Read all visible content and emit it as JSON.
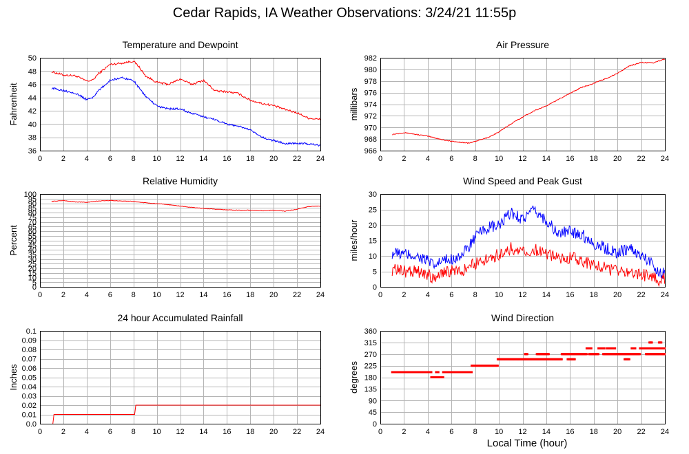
{
  "title": "Cedar Rapids, IA Weather Observations: 3/24/21 11:55p",
  "xlabel": "Local Time (hour)",
  "colors": {
    "red": "#ff0000",
    "blue": "#0000ff",
    "grid": "#b4b4b4",
    "frame": "#000000"
  },
  "chart_data": [
    {
      "type": "line",
      "title": "Temperature and Dewpoint",
      "ylabel": "Fahrenheit",
      "xlim": [
        0,
        24
      ],
      "ylim": [
        36,
        50
      ],
      "xticks": [
        0,
        2,
        4,
        6,
        8,
        10,
        12,
        14,
        16,
        18,
        20,
        22,
        24
      ],
      "yticks": [
        36,
        38,
        40,
        42,
        44,
        46,
        48,
        50
      ],
      "grid": true,
      "noise": 0.15,
      "series": [
        {
          "color": "#ff0000",
          "x": [
            1,
            2,
            3,
            4,
            4.5,
            5,
            6,
            7,
            8,
            8.5,
            9,
            10,
            11,
            12,
            13,
            14,
            15,
            16,
            17,
            18,
            19,
            20,
            21,
            22,
            23,
            24
          ],
          "values": [
            47.9,
            47.4,
            47.3,
            46.5,
            46.6,
            47.6,
            49.0,
            49.2,
            49.5,
            48.6,
            47.3,
            46.3,
            46.0,
            46.8,
            46.0,
            46.6,
            45.0,
            44.9,
            44.6,
            43.6,
            43.1,
            42.8,
            42.2,
            41.7,
            40.9,
            40.7
          ]
        },
        {
          "color": "#0000ff",
          "x": [
            1,
            2,
            3,
            4,
            4.5,
            5,
            6,
            7,
            8,
            8.5,
            9,
            10,
            11,
            12,
            13,
            14,
            15,
            16,
            17,
            18,
            19,
            20,
            21,
            22,
            23,
            24
          ],
          "values": [
            45.4,
            45.1,
            44.7,
            43.7,
            44.0,
            45.0,
            46.6,
            47.0,
            46.6,
            45.4,
            44.3,
            42.7,
            42.3,
            42.3,
            41.6,
            41.1,
            40.7,
            40.0,
            39.7,
            39.1,
            38.0,
            37.5,
            37.1,
            37.1,
            37.0,
            36.8
          ]
        }
      ]
    },
    {
      "type": "line",
      "title": "Air Pressure",
      "ylabel": "millibars",
      "xlim": [
        0,
        24
      ],
      "ylim": [
        966,
        982
      ],
      "xticks": [
        0,
        2,
        4,
        6,
        8,
        10,
        12,
        14,
        16,
        18,
        20,
        22,
        24
      ],
      "yticks": [
        966,
        968,
        970,
        972,
        974,
        976,
        978,
        980,
        982
      ],
      "grid": true,
      "noise": 0.08,
      "series": [
        {
          "color": "#ff0000",
          "x": [
            1,
            2,
            3,
            4,
            5,
            6,
            7,
            7.5,
            8,
            9,
            10,
            11,
            12,
            13,
            14,
            15,
            16,
            17,
            18,
            19,
            20,
            21,
            22,
            23,
            24
          ],
          "values": [
            968.8,
            969.1,
            968.8,
            968.5,
            968.0,
            967.6,
            967.4,
            967.3,
            967.6,
            968.2,
            969.2,
            970.6,
            971.8,
            972.9,
            973.7,
            974.8,
            975.9,
            976.9,
            977.6,
            978.4,
            979.3,
            980.6,
            981.2,
            981.1,
            981.8
          ]
        }
      ]
    },
    {
      "type": "line",
      "title": "Relative Humidity",
      "ylabel": "Percent",
      "xlim": [
        0,
        24
      ],
      "ylim": [
        0,
        100
      ],
      "xticks": [
        0,
        2,
        4,
        6,
        8,
        10,
        12,
        14,
        16,
        18,
        20,
        22,
        24
      ],
      "yticks": [
        0,
        5,
        10,
        15,
        20,
        25,
        30,
        35,
        40,
        45,
        50,
        55,
        60,
        65,
        70,
        75,
        80,
        85,
        90,
        95,
        100
      ],
      "grid": true,
      "noise": 0.3,
      "series": [
        {
          "color": "#ff0000",
          "x": [
            1,
            2,
            3,
            4,
            5,
            6,
            7,
            8,
            9,
            10,
            11,
            12,
            13,
            14,
            15,
            16,
            17,
            18,
            19,
            20,
            21,
            22,
            23,
            24
          ],
          "values": [
            92,
            93,
            91.5,
            91,
            92.5,
            93,
            92.5,
            92,
            90.5,
            89.5,
            88.5,
            87,
            85.5,
            84.5,
            83.5,
            83,
            82.5,
            82.5,
            82,
            82.5,
            81.5,
            83.5,
            86.5,
            87
          ]
        }
      ]
    },
    {
      "type": "line",
      "title": "Wind Speed and Peak Gust",
      "ylabel": "miles/hour",
      "xlim": [
        0,
        24
      ],
      "ylim": [
        0,
        30
      ],
      "xticks": [
        0,
        2,
        4,
        6,
        8,
        10,
        12,
        14,
        16,
        18,
        20,
        22,
        24
      ],
      "yticks": [
        0,
        5,
        10,
        15,
        20,
        25,
        30
      ],
      "grid": true,
      "noise": 2.0,
      "series": [
        {
          "color": "#0000ff",
          "x": [
            1,
            2,
            3,
            4,
            4.5,
            5,
            6,
            7,
            8,
            9,
            10,
            11,
            12,
            13,
            14,
            15,
            16,
            17,
            18,
            19,
            20,
            21,
            22,
            23,
            23.7,
            24
          ],
          "values": [
            11,
            10.5,
            10,
            8.5,
            6.5,
            8,
            9,
            10.5,
            16,
            19,
            19.5,
            24,
            22,
            24.5,
            21.5,
            17,
            18,
            17,
            14,
            12.5,
            11,
            12.5,
            10,
            7.5,
            4,
            5
          ]
        },
        {
          "color": "#ff0000",
          "x": [
            1,
            2,
            3,
            4,
            4.5,
            5,
            6,
            7,
            8,
            9,
            10,
            11,
            12,
            13,
            14,
            15,
            16,
            17,
            18,
            19,
            20,
            21,
            22,
            23,
            23.7,
            24
          ],
          "values": [
            5.5,
            5,
            5,
            4,
            3,
            4.5,
            5,
            5.5,
            7.5,
            9,
            10.5,
            12.5,
            11,
            12,
            10.5,
            9.5,
            9.5,
            8.5,
            7,
            6,
            5,
            5,
            4,
            3,
            2,
            3
          ]
        }
      ]
    },
    {
      "type": "line",
      "title": "24 hour Accumulated Rainfall",
      "ylabel": "Inches",
      "xlim": [
        0,
        24
      ],
      "ylim": [
        0,
        0.1
      ],
      "xticks": [
        0,
        2,
        4,
        6,
        8,
        10,
        12,
        14,
        16,
        18,
        20,
        22,
        24
      ],
      "yticks": [
        "0.0",
        "0.01",
        "0.02",
        "0.03",
        "0.04",
        "0.05",
        "0.06",
        "0.07",
        "0.08",
        "0.09",
        "0.1"
      ],
      "grid": true,
      "noise": 0,
      "series": [
        {
          "color": "#ff0000",
          "x": [
            1.1,
            1.2,
            8.1,
            8.2,
            24
          ],
          "values": [
            0,
            0.01,
            0.01,
            0.02,
            0.02
          ]
        }
      ]
    },
    {
      "type": "scatter",
      "title": "Wind Direction",
      "ylabel": "degrees",
      "xlim": [
        0,
        24
      ],
      "ylim": [
        0,
        360
      ],
      "xticks": [
        0,
        2,
        4,
        6,
        8,
        10,
        12,
        14,
        16,
        18,
        20,
        22,
        24
      ],
      "yticks": [
        0,
        45,
        90,
        135,
        180,
        225,
        270,
        315,
        360
      ],
      "grid": true,
      "noise": 0,
      "segments": [
        {
          "x0": 1,
          "x1": 4.3,
          "y": 200
        },
        {
          "x0": 4.3,
          "x1": 5.3,
          "y": 180
        },
        {
          "x0": 4.7,
          "x1": 4.9,
          "y": 200
        },
        {
          "x0": 5.3,
          "x1": 7.7,
          "y": 200
        },
        {
          "x0": 7.7,
          "x1": 9.9,
          "y": 225
        },
        {
          "x0": 9.9,
          "x1": 12.2,
          "y": 250
        },
        {
          "x0": 12.2,
          "x1": 15.3,
          "y": 250
        },
        {
          "x0": 12.2,
          "x1": 12.4,
          "y": 270
        },
        {
          "x0": 13.2,
          "x1": 14.2,
          "y": 270
        },
        {
          "x0": 15.3,
          "x1": 17.4,
          "y": 270
        },
        {
          "x0": 15.8,
          "x1": 16.4,
          "y": 250
        },
        {
          "x0": 17.4,
          "x1": 17.8,
          "y": 292
        },
        {
          "x0": 17.6,
          "x1": 18.4,
          "y": 270
        },
        {
          "x0": 18.4,
          "x1": 18.9,
          "y": 292
        },
        {
          "x0": 18.8,
          "x1": 21.9,
          "y": 270
        },
        {
          "x0": 19.1,
          "x1": 19.8,
          "y": 292
        },
        {
          "x0": 20.6,
          "x1": 21.0,
          "y": 250
        },
        {
          "x0": 21.2,
          "x1": 21.5,
          "y": 292
        },
        {
          "x0": 21.9,
          "x1": 24.0,
          "y": 292
        },
        {
          "x0": 22.4,
          "x1": 24.0,
          "y": 270
        },
        {
          "x0": 22.7,
          "x1": 22.9,
          "y": 315
        },
        {
          "x0": 23.5,
          "x1": 23.7,
          "y": 315
        }
      ]
    }
  ]
}
